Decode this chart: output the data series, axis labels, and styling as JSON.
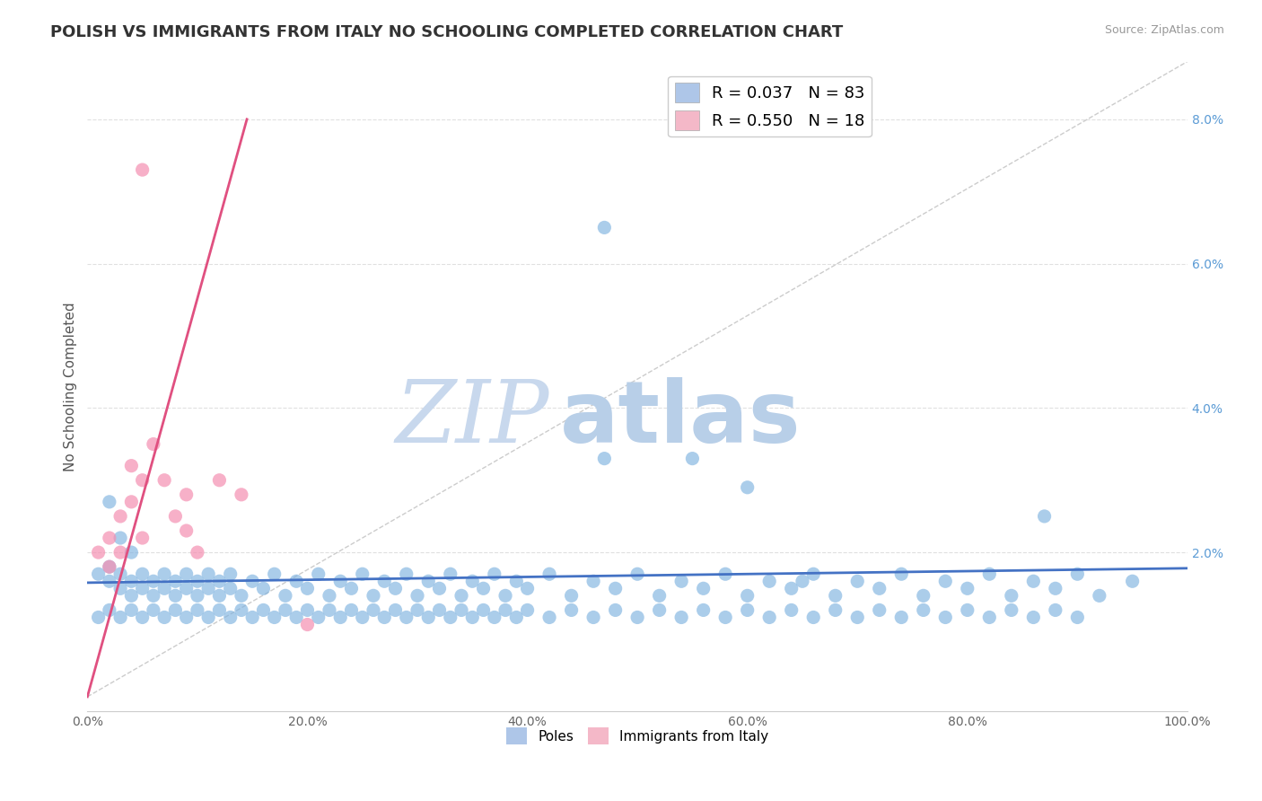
{
  "title": "POLISH VS IMMIGRANTS FROM ITALY NO SCHOOLING COMPLETED CORRELATION CHART",
  "source_text": "Source: ZipAtlas.com",
  "ylabel": "No Schooling Completed",
  "xlim": [
    0.0,
    1.0
  ],
  "ylim": [
    -0.002,
    0.088
  ],
  "xtick_labels": [
    "0.0%",
    "20.0%",
    "40.0%",
    "60.0%",
    "80.0%",
    "100.0%"
  ],
  "xtick_vals": [
    0.0,
    0.2,
    0.4,
    0.6,
    0.8,
    1.0
  ],
  "ytick_labels": [
    "2.0%",
    "4.0%",
    "6.0%",
    "8.0%"
  ],
  "ytick_vals": [
    0.02,
    0.04,
    0.06,
    0.08
  ],
  "legend_entries": [
    {
      "label": "R = 0.037   N = 83",
      "color": "#aec6e8"
    },
    {
      "label": "R = 0.550   N = 18",
      "color": "#f4b8c8"
    }
  ],
  "poles_scatter": {
    "x": [
      0.01,
      0.02,
      0.02,
      0.03,
      0.03,
      0.04,
      0.04,
      0.05,
      0.05,
      0.06,
      0.06,
      0.07,
      0.07,
      0.08,
      0.08,
      0.09,
      0.09,
      0.1,
      0.1,
      0.11,
      0.11,
      0.12,
      0.12,
      0.13,
      0.13,
      0.14,
      0.15,
      0.16,
      0.17,
      0.18,
      0.19,
      0.2,
      0.21,
      0.22,
      0.23,
      0.24,
      0.25,
      0.26,
      0.27,
      0.28,
      0.29,
      0.3,
      0.31,
      0.32,
      0.33,
      0.34,
      0.35,
      0.36,
      0.37,
      0.38,
      0.39,
      0.4,
      0.42,
      0.44,
      0.46,
      0.48,
      0.5,
      0.52,
      0.54,
      0.56,
      0.58,
      0.6,
      0.62,
      0.64,
      0.66,
      0.68,
      0.7,
      0.72,
      0.74,
      0.76,
      0.78,
      0.8,
      0.82,
      0.84,
      0.86,
      0.88,
      0.9,
      0.92,
      0.95,
      0.02,
      0.03,
      0.04,
      0.47
    ],
    "y": [
      0.017,
      0.016,
      0.018,
      0.015,
      0.017,
      0.014,
      0.016,
      0.015,
      0.017,
      0.014,
      0.016,
      0.015,
      0.017,
      0.014,
      0.016,
      0.015,
      0.017,
      0.014,
      0.016,
      0.015,
      0.017,
      0.014,
      0.016,
      0.015,
      0.017,
      0.014,
      0.016,
      0.015,
      0.017,
      0.014,
      0.016,
      0.015,
      0.017,
      0.014,
      0.016,
      0.015,
      0.017,
      0.014,
      0.016,
      0.015,
      0.017,
      0.014,
      0.016,
      0.015,
      0.017,
      0.014,
      0.016,
      0.015,
      0.017,
      0.014,
      0.016,
      0.015,
      0.017,
      0.014,
      0.016,
      0.015,
      0.017,
      0.014,
      0.016,
      0.015,
      0.017,
      0.014,
      0.016,
      0.015,
      0.017,
      0.014,
      0.016,
      0.015,
      0.017,
      0.014,
      0.016,
      0.015,
      0.017,
      0.014,
      0.016,
      0.015,
      0.017,
      0.014,
      0.016,
      0.027,
      0.022,
      0.02,
      0.033
    ],
    "color": "#7fb3e0",
    "alpha": 0.65,
    "size": 120
  },
  "poles_scatter2": {
    "x": [
      0.01,
      0.02,
      0.03,
      0.04,
      0.05,
      0.06,
      0.07,
      0.08,
      0.09,
      0.1,
      0.11,
      0.12,
      0.13,
      0.14,
      0.15,
      0.16,
      0.17,
      0.18,
      0.19,
      0.2,
      0.21,
      0.22,
      0.23,
      0.24,
      0.25,
      0.26,
      0.27,
      0.28,
      0.29,
      0.3,
      0.31,
      0.32,
      0.33,
      0.34,
      0.35,
      0.36,
      0.37,
      0.38,
      0.39,
      0.4,
      0.42,
      0.44,
      0.46,
      0.48,
      0.5,
      0.52,
      0.54,
      0.56,
      0.58,
      0.6,
      0.62,
      0.64,
      0.66,
      0.68,
      0.7,
      0.72,
      0.74,
      0.76,
      0.78,
      0.8,
      0.82,
      0.84,
      0.86,
      0.88,
      0.9
    ],
    "y": [
      0.011,
      0.012,
      0.011,
      0.012,
      0.011,
      0.012,
      0.011,
      0.012,
      0.011,
      0.012,
      0.011,
      0.012,
      0.011,
      0.012,
      0.011,
      0.012,
      0.011,
      0.012,
      0.011,
      0.012,
      0.011,
      0.012,
      0.011,
      0.012,
      0.011,
      0.012,
      0.011,
      0.012,
      0.011,
      0.012,
      0.011,
      0.012,
      0.011,
      0.012,
      0.011,
      0.012,
      0.011,
      0.012,
      0.011,
      0.012,
      0.011,
      0.012,
      0.011,
      0.012,
      0.011,
      0.012,
      0.011,
      0.012,
      0.011,
      0.012,
      0.011,
      0.012,
      0.011,
      0.012,
      0.011,
      0.012,
      0.011,
      0.012,
      0.011,
      0.012,
      0.011,
      0.012,
      0.011,
      0.012,
      0.011
    ],
    "color": "#7fb3e0",
    "alpha": 0.65,
    "size": 120
  },
  "poles_outliers": {
    "x": [
      0.47,
      0.55,
      0.6,
      0.65,
      0.87
    ],
    "y": [
      0.065,
      0.033,
      0.029,
      0.016,
      0.025
    ],
    "color": "#7fb3e0",
    "alpha": 0.65,
    "size": 120
  },
  "italy_scatter": {
    "x": [
      0.01,
      0.02,
      0.02,
      0.03,
      0.03,
      0.04,
      0.04,
      0.05,
      0.05,
      0.06,
      0.07,
      0.08,
      0.09,
      0.09,
      0.1,
      0.12,
      0.14,
      0.2
    ],
    "y": [
      0.02,
      0.018,
      0.022,
      0.02,
      0.025,
      0.032,
      0.027,
      0.03,
      0.022,
      0.035,
      0.03,
      0.025,
      0.028,
      0.023,
      0.02,
      0.03,
      0.028,
      0.01
    ],
    "color": "#f48fb1",
    "alpha": 0.7,
    "size": 120
  },
  "italy_outlier": {
    "x": [
      0.05
    ],
    "y": [
      0.073
    ],
    "color": "#f48fb1",
    "alpha": 0.7,
    "size": 120
  },
  "poles_trendline": {
    "x": [
      0.0,
      1.0
    ],
    "y": [
      0.0158,
      0.0178
    ],
    "color": "#4472c4",
    "linewidth": 2.0
  },
  "italy_trendline": {
    "x": [
      0.0,
      0.145
    ],
    "y": [
      0.0,
      0.08
    ],
    "color": "#e05080",
    "linewidth": 2.0
  },
  "diag_line": {
    "x": [
      0.0,
      1.0
    ],
    "y": [
      0.0,
      0.088
    ],
    "color": "#cccccc",
    "linestyle": "--",
    "linewidth": 1.0
  },
  "watermark_zip": "ZIP",
  "watermark_atlas": "atlas",
  "watermark_color_zip": "#c8d8ed",
  "watermark_color_atlas": "#b8cfe8",
  "watermark_fontsize": 70,
  "background_color": "#ffffff",
  "grid_color": "#e0e0e0",
  "title_fontsize": 13,
  "axis_label_fontsize": 11,
  "tick_fontsize": 10,
  "legend_fontsize": 12,
  "bottom_legend": [
    {
      "label": "Poles",
      "color": "#aec6e8"
    },
    {
      "label": "Immigrants from Italy",
      "color": "#f4b8c8"
    }
  ]
}
